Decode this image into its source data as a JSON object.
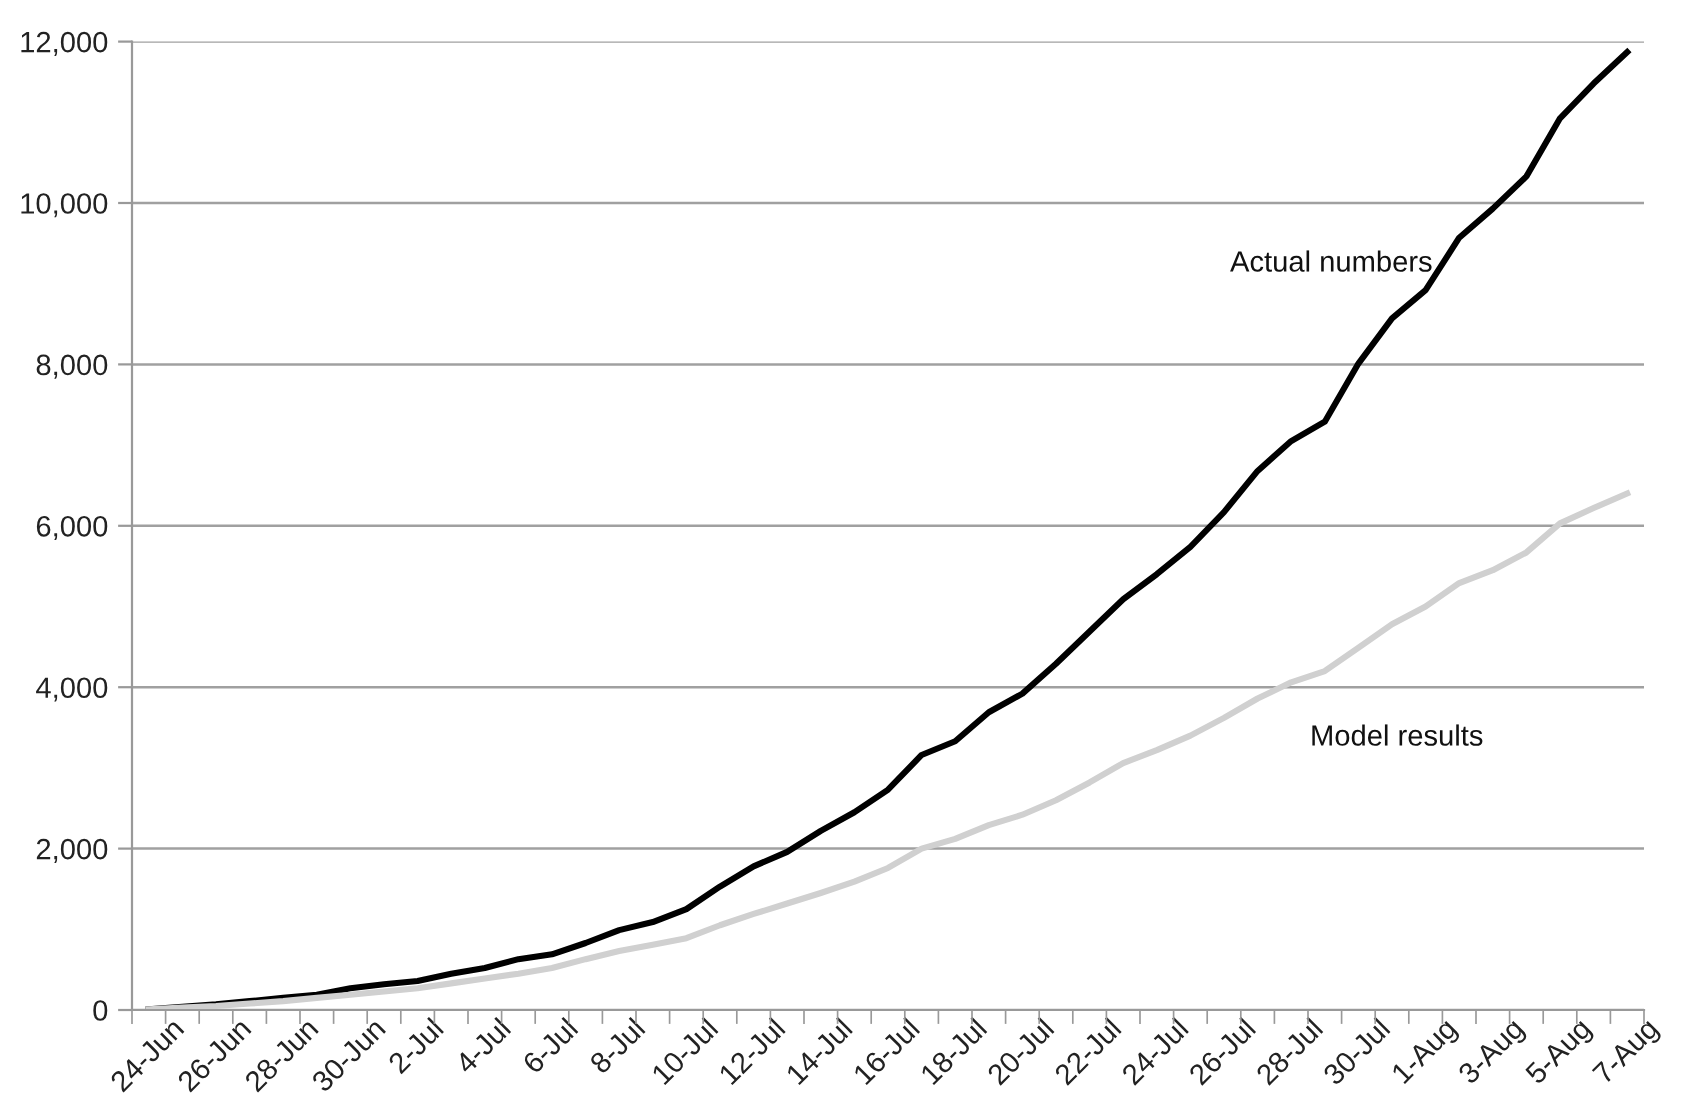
{
  "chart_data": {
    "type": "line",
    "categories": [
      "24-Jun",
      null,
      "26-Jun",
      null,
      "28-Jun",
      null,
      "30-Jun",
      null,
      "2-Jul",
      null,
      "4-Jul",
      null,
      "6-Jul",
      null,
      "8-Jul",
      null,
      "10-Jul",
      null,
      "12-Jul",
      null,
      "14-Jul",
      null,
      "16-Jul",
      null,
      "18-Jul",
      null,
      "20-Jul",
      null,
      "22-Jul",
      null,
      "24-Jul",
      null,
      "26-Jul",
      null,
      "28-Jul",
      null,
      "30-Jul",
      null,
      "1-Aug",
      null,
      "3-Aug",
      null,
      "5-Aug",
      null,
      "7-Aug"
    ],
    "series": [
      {
        "color": "#000000",
        "values": [
          10,
          40,
          70,
          110,
          150,
          190,
          270,
          320,
          360,
          450,
          520,
          630,
          690,
          830,
          990,
          1090,
          1250,
          1530,
          1780,
          1960,
          2220,
          2450,
          2730,
          3160,
          3330,
          3690,
          3920,
          4290,
          4690,
          5090,
          5400,
          5740,
          6170,
          6680,
          7050,
          7290,
          8010,
          8570,
          8920,
          9570,
          9930,
          10330,
          11050,
          11480,
          11870
        ]
      },
      {
        "color": "#d0d0d0",
        "values": [
          10,
          30,
          50,
          80,
          110,
          150,
          190,
          230,
          270,
          330,
          390,
          450,
          520,
          630,
          730,
          810,
          890,
          1050,
          1190,
          1320,
          1450,
          1590,
          1760,
          2000,
          2120,
          2290,
          2420,
          2600,
          2820,
          3060,
          3220,
          3400,
          3620,
          3860,
          4060,
          4200,
          4490,
          4780,
          5000,
          5290,
          5450,
          5670,
          6030,
          6220,
          6400
        ]
      }
    ],
    "annotations": [
      "Actual numbers",
      "Model results"
    ],
    "ylim": [
      0,
      12000
    ],
    "yticks": [
      {
        "value": 0,
        "label": "0"
      },
      {
        "value": 2000,
        "label": "2,000"
      },
      {
        "value": 4000,
        "label": "4,000"
      },
      {
        "value": 6000,
        "label": "6,000"
      },
      {
        "value": 8000,
        "label": "8,000"
      },
      {
        "value": 10000,
        "label": "10,000"
      },
      {
        "value": 12000,
        "label": "12,000"
      }
    ],
    "grid": "y",
    "legend": false,
    "marker": "none",
    "line_style": "solid"
  }
}
